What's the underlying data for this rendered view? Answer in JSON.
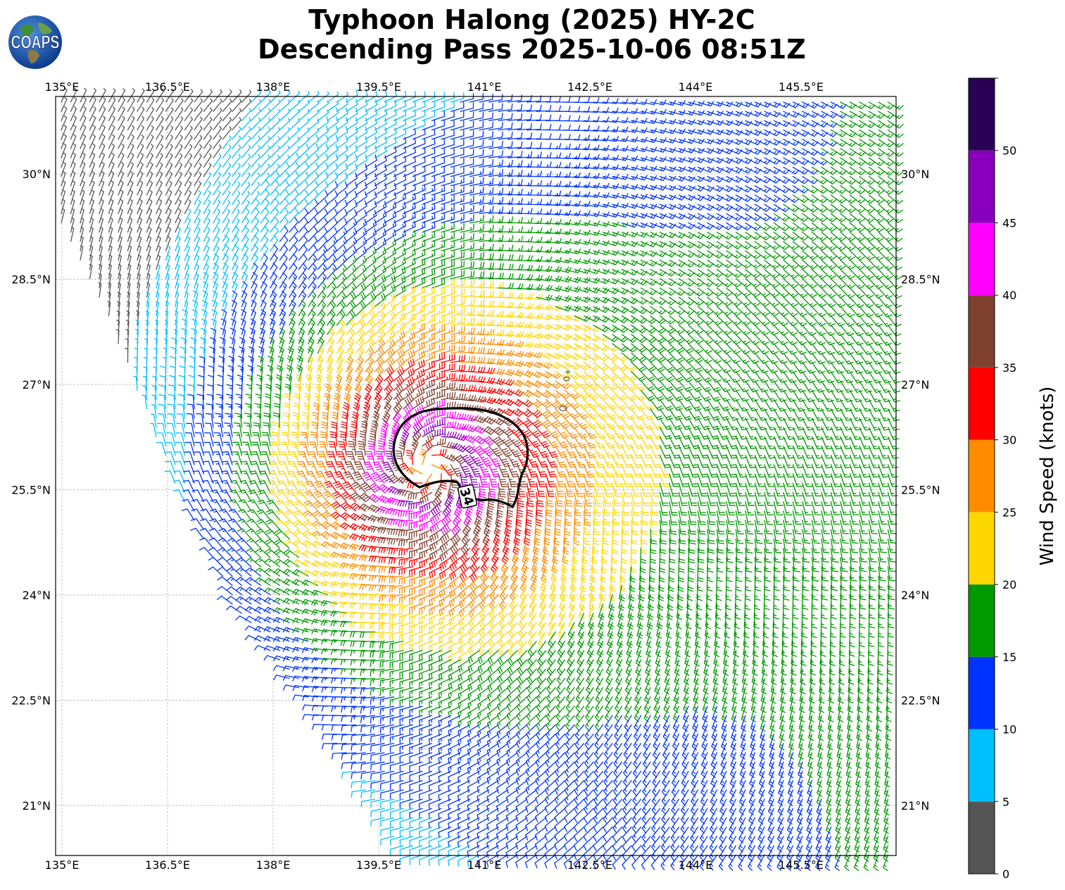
{
  "title": {
    "line1": "Typhoon Halong (2025) HY-2C",
    "line2": "Descending Pass 2025-10-06 08:51Z"
  },
  "logo": {
    "text": "COAPS",
    "icon": "globe-logo-icon"
  },
  "map": {
    "lon_range": [
      134.9,
      146.85
    ],
    "lat_range": [
      19.7,
      30.5
    ],
    "lon_ticks": [
      "135°E",
      "136.5°E",
      "138°E",
      "139.5°E",
      "141°E",
      "142.5°E",
      "144°E",
      "145.5°E"
    ],
    "lon_tick_values": [
      135,
      136.5,
      138,
      139.5,
      141,
      142.5,
      144,
      145.5
    ],
    "lat_ticks": [
      "30°N",
      "28.5°N",
      "27°N",
      "25.5°N",
      "24°N",
      "22.5°N",
      "21°N"
    ],
    "lat_tick_values": [
      30,
      28.5,
      27,
      25.5,
      24,
      22.5,
      21
    ],
    "grid": true,
    "storm_center": {
      "lon": 140.2,
      "lat": 25.8
    },
    "contour_label": "34",
    "contour_kt": 34
  },
  "colorbar": {
    "label": "Wind Speed (knots)",
    "ticks": [
      "0",
      "5",
      "10",
      "15",
      "20",
      "25",
      "30",
      "35",
      "40",
      "45",
      "50"
    ],
    "bins": [
      {
        "min": 0,
        "max": 5,
        "color": "#555555"
      },
      {
        "min": 5,
        "max": 10,
        "color": "#00bfff"
      },
      {
        "min": 10,
        "max": 15,
        "color": "#0033ff"
      },
      {
        "min": 15,
        "max": 20,
        "color": "#009900"
      },
      {
        "min": 20,
        "max": 25,
        "color": "#ffd700"
      },
      {
        "min": 25,
        "max": 30,
        "color": "#ff8c00"
      },
      {
        "min": 30,
        "max": 35,
        "color": "#ff0000"
      },
      {
        "min": 35,
        "max": 40,
        "color": "#804030"
      },
      {
        "min": 40,
        "max": 45,
        "color": "#ff00ff"
      },
      {
        "min": 45,
        "max": 50,
        "color": "#8800bb"
      },
      {
        "min": 50,
        "max": 55,
        "color": "#2a0055"
      }
    ]
  }
}
